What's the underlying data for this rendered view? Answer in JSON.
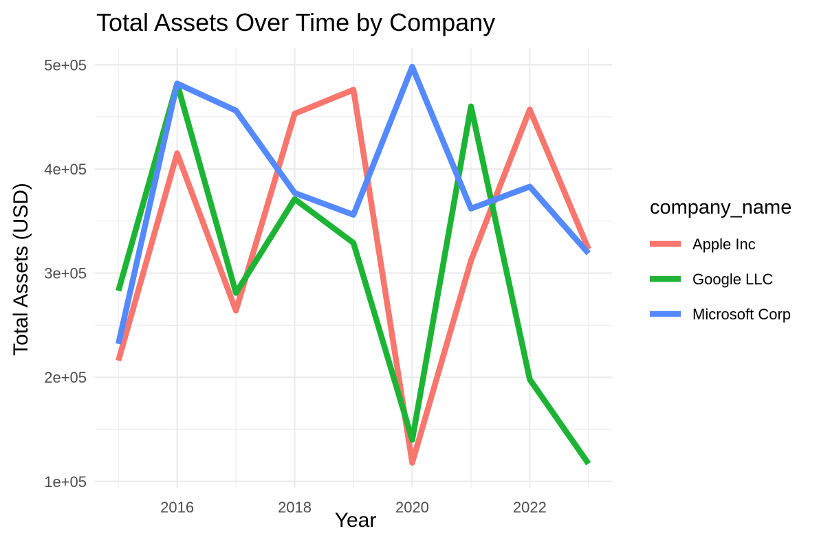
{
  "chart_data": {
    "type": "line",
    "title": "Total Assets Over Time by Company",
    "xlabel": "Year",
    "ylabel": "Total Assets (USD)",
    "x": [
      2015,
      2016,
      2017,
      2018,
      2019,
      2020,
      2021,
      2022,
      2023
    ],
    "xlim": [
      2014.6,
      2023.4
    ],
    "ylim": [
      94000,
      516000
    ],
    "x_ticks": [
      2016,
      2018,
      2020,
      2022
    ],
    "x_tick_labels": [
      "2016",
      "2018",
      "2020",
      "2022"
    ],
    "y_ticks": [
      100000,
      200000,
      300000,
      400000,
      500000
    ],
    "y_tick_labels": [
      "1e+05",
      "2e+05",
      "3e+05",
      "4e+05",
      "5e+05"
    ],
    "grid": true,
    "legend": {
      "title": "company_name",
      "position": "right"
    },
    "series": [
      {
        "name": "Apple Inc",
        "color": "#F8766D",
        "values": [
          216000,
          415000,
          264000,
          453000,
          476000,
          118000,
          312000,
          457000,
          323000
        ]
      },
      {
        "name": "Google LLC",
        "color": "#1DB435",
        "values": [
          283000,
          482000,
          281000,
          371000,
          329000,
          140000,
          460000,
          198000,
          117000
        ]
      },
      {
        "name": "Microsoft Corp",
        "color": "#5489FF",
        "values": [
          232000,
          482000,
          456000,
          377000,
          356000,
          498000,
          362000,
          383000,
          319000
        ]
      }
    ]
  }
}
